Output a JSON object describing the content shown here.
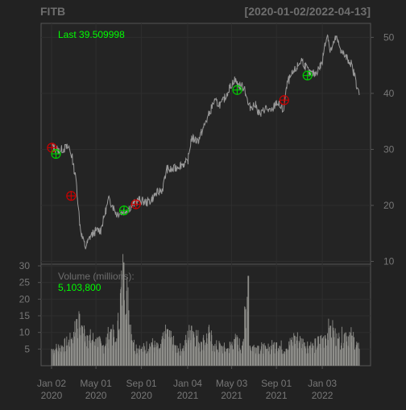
{
  "chart_data": {
    "type": "line",
    "title": "FITB",
    "date_range_label": "[2020-01-02/2022-04-13]",
    "last_label": "Last 39.509998",
    "volume_label": "Volume (millions):",
    "volume_value": "5,103,800",
    "x_tick_labels": [
      {
        "date": "2020-01-02",
        "line1": "Jan 02",
        "line2": "2020"
      },
      {
        "date": "2020-05-01",
        "line1": "May 01",
        "line2": "2020"
      },
      {
        "date": "2020-09-01",
        "line1": "Sep 01",
        "line2": "2020"
      },
      {
        "date": "2021-01-04",
        "line1": "Jan 04",
        "line2": "2021"
      },
      {
        "date": "2021-05-03",
        "line1": "May 03",
        "line2": "2021"
      },
      {
        "date": "2021-09-01",
        "line1": "Sep 01",
        "line2": "2021"
      },
      {
        "date": "2022-01-03",
        "line1": "Jan 03",
        "line2": "2022"
      }
    ],
    "price_axis": {
      "ticks": [
        10,
        20,
        30,
        40,
        50
      ],
      "ylim": [
        9.5,
        52.5
      ]
    },
    "volume_axis": {
      "ticks": [
        5,
        10,
        15,
        20,
        25,
        30
      ],
      "ylim": [
        0,
        30.5
      ]
    },
    "price_series": {
      "name": "FITB",
      "dates": [
        "2020-01-02",
        "2020-01-21",
        "2020-02-07",
        "2020-02-18",
        "2020-02-27",
        "2020-03-09",
        "2020-03-18",
        "2020-03-25",
        "2020-04-03",
        "2020-04-16",
        "2020-05-01",
        "2020-05-14",
        "2020-06-04",
        "2020-06-10",
        "2020-06-26",
        "2020-07-15",
        "2020-08-03",
        "2020-08-25",
        "2020-09-15",
        "2020-09-25",
        "2020-10-09",
        "2020-10-28",
        "2020-11-09",
        "2020-11-25",
        "2020-12-10",
        "2021-01-04",
        "2021-01-14",
        "2021-02-01",
        "2021-02-26",
        "2021-03-16",
        "2021-04-05",
        "2021-04-26",
        "2021-05-10",
        "2021-05-21",
        "2021-06-07",
        "2021-06-18",
        "2021-07-06",
        "2021-07-19",
        "2021-08-02",
        "2021-08-17",
        "2021-09-01",
        "2021-09-20",
        "2021-10-01",
        "2021-10-25",
        "2021-11-08",
        "2021-11-30",
        "2021-12-15",
        "2022-01-03",
        "2022-01-10",
        "2022-01-18",
        "2022-01-24",
        "2022-02-01",
        "2022-02-09",
        "2022-02-24",
        "2022-03-07",
        "2022-03-21",
        "2022-04-01",
        "2022-04-13"
      ],
      "values": [
        30.5,
        29.8,
        30.2,
        30.4,
        28.5,
        24.0,
        17.0,
        14.2,
        12.5,
        14.5,
        15.5,
        15.6,
        21.0,
        20.6,
        18.5,
        18.9,
        19.8,
        21.0,
        20.5,
        20.8,
        22.0,
        22.9,
        26.5,
        26.3,
        27.1,
        27.7,
        32.0,
        31.5,
        35.5,
        38.5,
        38.0,
        40.8,
        42.5,
        41.5,
        41.0,
        37.5,
        38.0,
        36.0,
        37.5,
        36.5,
        38.5,
        37.0,
        42.0,
        44.5,
        46.0,
        43.5,
        43.5,
        45.5,
        49.0,
        50.5,
        47.5,
        48.5,
        50.0,
        47.5,
        46.5,
        45.5,
        43.0,
        39.5
      ]
    },
    "signals": [
      {
        "date": "2020-01-03",
        "price": 30.3,
        "kind": "sell",
        "color": "#cc0000"
      },
      {
        "date": "2020-01-14",
        "price": 29.2,
        "kind": "buy",
        "color": "#00cc00"
      },
      {
        "date": "2020-02-24",
        "price": 21.7,
        "kind": "sell",
        "color": "#cc0000"
      },
      {
        "date": "2020-07-16",
        "price": 19.1,
        "kind": "buy",
        "color": "#00cc00"
      },
      {
        "date": "2020-08-17",
        "price": 20.2,
        "kind": "sell",
        "color": "#cc0000"
      },
      {
        "date": "2021-05-18",
        "price": 40.6,
        "kind": "buy",
        "color": "#00cc00"
      },
      {
        "date": "2021-09-22",
        "price": 38.8,
        "kind": "sell",
        "color": "#cc0000"
      },
      {
        "date": "2021-11-24",
        "price": 43.2,
        "kind": "buy",
        "color": "#00cc00"
      }
    ],
    "volume_series": {
      "name": "Volume",
      "dates": [
        "2020-01-02",
        "2020-02-01",
        "2020-02-25",
        "2020-03-10",
        "2020-03-24",
        "2020-04-08",
        "2020-05-01",
        "2020-05-20",
        "2020-06-11",
        "2020-06-25",
        "2020-07-15",
        "2020-08-10",
        "2020-09-01",
        "2020-09-28",
        "2020-10-19",
        "2020-11-10",
        "2020-12-01",
        "2020-12-21",
        "2021-01-15",
        "2021-02-10",
        "2021-03-05",
        "2021-03-15",
        "2021-04-05",
        "2021-04-20",
        "2021-05-10",
        "2021-06-01",
        "2021-06-17",
        "2021-06-21",
        "2021-07-12",
        "2021-08-05",
        "2021-09-01",
        "2021-09-28",
        "2021-10-20",
        "2021-11-15",
        "2021-12-10",
        "2022-01-10",
        "2022-01-25",
        "2022-02-15",
        "2022-03-07",
        "2022-03-25",
        "2022-04-13"
      ],
      "values": [
        5,
        6,
        8,
        14,
        12,
        9,
        8,
        6,
        11,
        7,
        31,
        7,
        5,
        7,
        5,
        11,
        6,
        5,
        12,
        7,
        10,
        6,
        6,
        5,
        8,
        6,
        27,
        6,
        6,
        5,
        7,
        5,
        9,
        7,
        6,
        9,
        12,
        8,
        10,
        9,
        5
      ]
    },
    "colors": {
      "background": "#222222",
      "plot_background": "#242424",
      "grid": "#2e2e2e",
      "border": "#555555",
      "axis_text": "#777777",
      "price_line": "#9a9a9a",
      "last_label": "#00ff00",
      "volume_value": "#00ff00",
      "volume_bars": "#8e8e8a"
    }
  }
}
